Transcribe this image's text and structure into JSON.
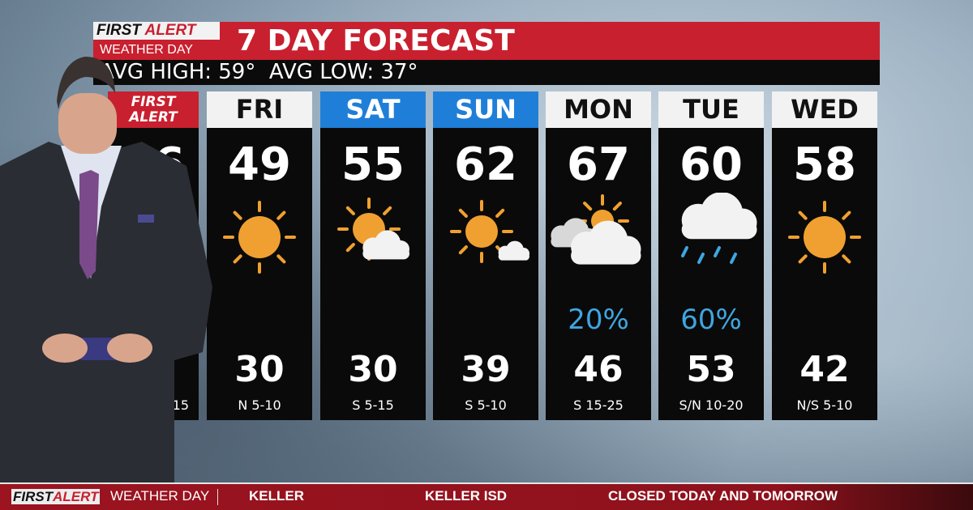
{
  "header": {
    "logo_line1a": "FIRST",
    "logo_line1b": "ALERT",
    "logo_line2": "WEATHER DAY",
    "title": "7 DAY FORECAST",
    "avg": "AVG HIGH: 59°  AVG LOW: 37°"
  },
  "days": [
    {
      "label": "FIRST ALERT",
      "high": "36",
      "icon": "hidden",
      "precip": "",
      "low": "",
      "wind": "15"
    },
    {
      "label": "FRI",
      "high": "49",
      "icon": "sun-icon",
      "precip": "",
      "low": "30",
      "wind": "N 5-10"
    },
    {
      "label": "SAT",
      "high": "55",
      "icon": "sun-cloud-icon",
      "precip": "",
      "low": "30",
      "wind": "S 5-15"
    },
    {
      "label": "SUN",
      "high": "62",
      "icon": "sun-small-cloud-icon",
      "precip": "",
      "low": "39",
      "wind": "S 5-10"
    },
    {
      "label": "MON",
      "high": "67",
      "icon": "mostly-cloudy-icon",
      "precip": "20%",
      "low": "46",
      "wind": "S 15-25"
    },
    {
      "label": "TUE",
      "high": "60",
      "icon": "rain-icon",
      "precip": "60%",
      "low": "53",
      "wind": "S/N 10-20"
    },
    {
      "label": "WED",
      "high": "58",
      "icon": "sun-icon",
      "precip": "",
      "low": "42",
      "wind": "N/S 5-10"
    }
  ],
  "colors": {
    "red": "#c8202f",
    "weekend": "#1f7fd8",
    "precip": "#3ea6e0",
    "sun": "#f0a030"
  },
  "ticker": {
    "logo_a": "FIRST",
    "logo_b": "ALERT",
    "logo_c": "WEATHER DAY",
    "location": "KELLER",
    "district": "KELLER ISD",
    "status": "CLOSED TODAY AND TOMORROW"
  }
}
